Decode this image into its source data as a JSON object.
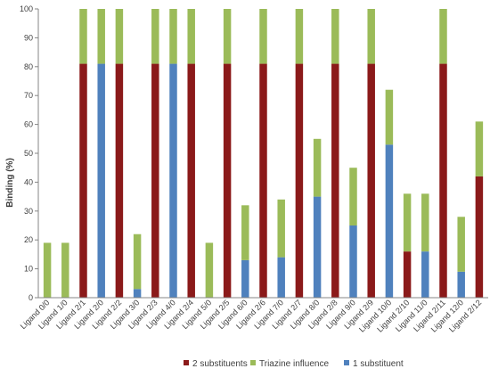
{
  "chart_data": {
    "type": "bar",
    "stacked": true,
    "title": "",
    "xlabel": "",
    "ylabel": "Binding (%)",
    "ylim": [
      0,
      100
    ],
    "yticks": [
      0,
      10,
      20,
      30,
      40,
      50,
      60,
      70,
      80,
      90,
      100
    ],
    "grid": false,
    "legend_position": "bottom",
    "categories": [
      "Ligand 0/0",
      "Ligand 1/0",
      "Ligand 2/1",
      "Ligand 2/0",
      "Ligand 2/2",
      "Ligand 3/0",
      "Ligand 2/3",
      "Ligand 4/0",
      "Ligand 2/4",
      "Ligand 5/0",
      "Ligand 2/5",
      "Ligand 6/0",
      "Ligand 2/6",
      "Ligand 7/0",
      "Ligand 2/7",
      "Ligand 8/0",
      "Ligand 2/8",
      "Ligand 9/0",
      "Ligand 2/9",
      "Ligand 10/0",
      "Ligand 2/10",
      "Ligand 11/0",
      "Ligand 2/11",
      "Ligand 12/0",
      "Ligand 2/12"
    ],
    "series": [
      {
        "name": "1 substituent",
        "color": "#4f81bd",
        "values": [
          0,
          0,
          0,
          81,
          0,
          3,
          0,
          81,
          0,
          0,
          0,
          13,
          0,
          14,
          0,
          35,
          0,
          25,
          0,
          53,
          0,
          16,
          0,
          9,
          0
        ]
      },
      {
        "name": "2 substituents",
        "color": "#8b1a1a",
        "values": [
          0,
          0,
          81,
          0,
          81,
          0,
          81,
          0,
          81,
          0,
          81,
          0,
          81,
          0,
          81,
          0,
          81,
          0,
          81,
          0,
          16,
          0,
          81,
          0,
          42
        ]
      },
      {
        "name": "Triazine influence",
        "color": "#9bbb59",
        "values": [
          19,
          19,
          19,
          19,
          19,
          19,
          19,
          19,
          19,
          19,
          19,
          19,
          19,
          20,
          19,
          20,
          19,
          20,
          19,
          19,
          20,
          20,
          19,
          19,
          19
        ]
      }
    ],
    "legend": [
      "2 substituents",
      "Triazine influence",
      "1 substituent"
    ]
  }
}
